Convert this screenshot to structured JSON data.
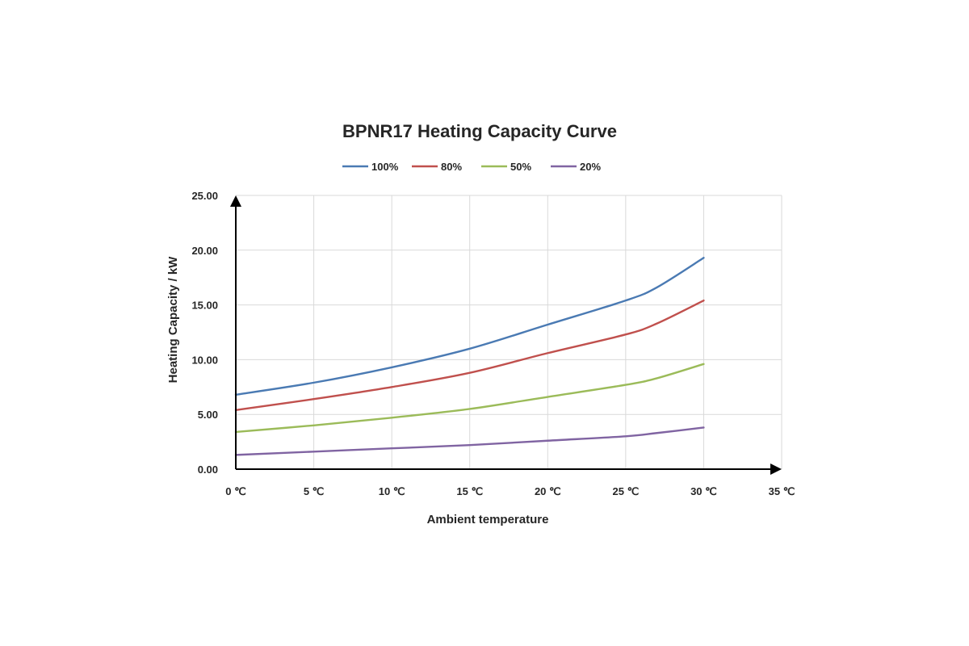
{
  "chart_data": {
    "type": "line",
    "title": "BPNR17 Heating Capacity Curve",
    "xlabel": "Ambient temperature",
    "ylabel": "Heating Capacity / kW",
    "xlim": [
      0,
      35
    ],
    "ylim": [
      0,
      25
    ],
    "x_ticks": [
      "0 ℃",
      "5 ℃",
      "10 ℃",
      "15 ℃",
      "20 ℃",
      "25 ℃",
      "30 ℃",
      "35 ℃"
    ],
    "y_ticks": [
      "0.00",
      "5.00",
      "10.00",
      "15.00",
      "20.00",
      "25.00"
    ],
    "x": [
      0,
      5,
      10,
      15,
      20,
      25,
      27,
      30
    ],
    "grid": true,
    "legend_position": "top",
    "series": [
      {
        "name": "100%",
        "color": "#4a7ab3",
        "values": [
          6.8,
          7.9,
          9.3,
          11.0,
          13.2,
          15.4,
          16.6,
          19.3
        ]
      },
      {
        "name": "80%",
        "color": "#c0504d",
        "values": [
          5.4,
          6.4,
          7.5,
          8.8,
          10.6,
          12.3,
          13.3,
          15.4
        ]
      },
      {
        "name": "50%",
        "color": "#9bbb59",
        "values": [
          3.4,
          4.0,
          4.7,
          5.5,
          6.6,
          7.7,
          8.3,
          9.6
        ]
      },
      {
        "name": "20%",
        "color": "#8064a2",
        "values": [
          1.3,
          1.6,
          1.9,
          2.2,
          2.6,
          3.0,
          3.3,
          3.8
        ]
      }
    ]
  }
}
